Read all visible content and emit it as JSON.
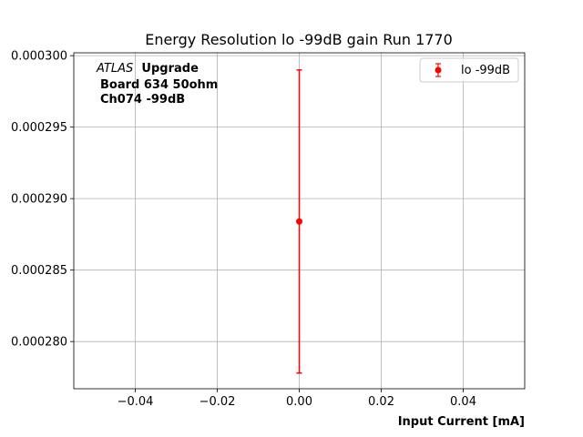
{
  "chart_data": {
    "type": "scatter",
    "title": "Energy Resolution lo -99dB gain Run 1770",
    "xlabel": "Input Current [mA]",
    "ylabel": "",
    "xlim": [
      -0.055,
      0.055
    ],
    "ylim": [
      0.0002767,
      0.0003002
    ],
    "x_ticks": [
      -0.04,
      -0.02,
      0.0,
      0.02,
      0.04
    ],
    "x_tick_labels": [
      "−0.04",
      "−0.02",
      "0.00",
      "0.02",
      "0.04"
    ],
    "y_ticks": [
      0.00028,
      0.000285,
      0.00029,
      0.000295,
      0.0003
    ],
    "y_tick_labels": [
      "0.000280",
      "0.000285",
      "0.000290",
      "0.000295",
      "0.000300"
    ],
    "grid": true,
    "legend_position": "top-right",
    "series": [
      {
        "name": "lo -99dB",
        "color": "#ff0000",
        "marker": "circle",
        "points": [
          {
            "x": 0.0,
            "y": 0.0002884,
            "yerr": 1.06e-05
          }
        ]
      }
    ],
    "annotation": {
      "line1_italic": "ATLAS",
      "line1_bold": "Upgrade",
      "line2": "Board 634 50ohm",
      "line3": "Ch074 -99dB"
    }
  }
}
